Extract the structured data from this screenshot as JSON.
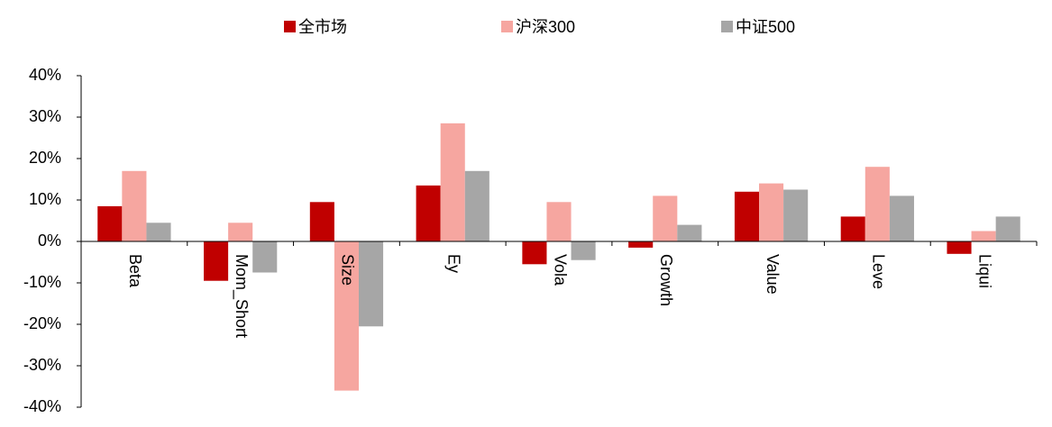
{
  "chart_data": {
    "type": "bar",
    "categories": [
      "Beta",
      "Mom_Short",
      "Size",
      "Ey",
      "Vola",
      "Growth",
      "Value",
      "Leve",
      "Liqui"
    ],
    "series": [
      {
        "name": "全市场",
        "color": "#c00000",
        "values": [
          8.5,
          -9.5,
          9.5,
          13.5,
          -5.5,
          -1.5,
          12,
          6,
          -3
        ]
      },
      {
        "name": "沪深300",
        "color": "#f6a6a0",
        "values": [
          17,
          4.5,
          -36,
          28.5,
          9.5,
          11,
          14,
          18,
          2.5
        ]
      },
      {
        "name": "中证500",
        "color": "#a6a6a6",
        "values": [
          4.5,
          -7.5,
          -20.5,
          17,
          -4.5,
          4,
          12.5,
          11,
          6
        ]
      }
    ],
    "ylim": [
      -40,
      40
    ],
    "yticks": [
      {
        "value": -40,
        "label": "-40%"
      },
      {
        "value": -30,
        "label": "-30%"
      },
      {
        "value": -20,
        "label": "-20%"
      },
      {
        "value": -10,
        "label": "-10%"
      },
      {
        "value": 0,
        "label": "0%"
      },
      {
        "value": 10,
        "label": "10%"
      },
      {
        "value": 20,
        "label": "20%"
      },
      {
        "value": 30,
        "label": "30%"
      },
      {
        "value": 40,
        "label": "40%"
      }
    ],
    "legend": "top"
  }
}
